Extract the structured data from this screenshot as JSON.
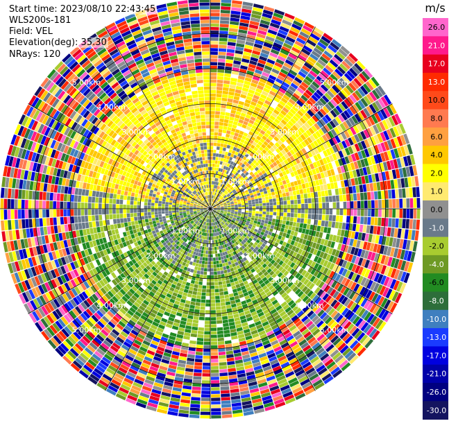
{
  "header": {
    "start_time": "Start time: 2023/08/10 22:43:45",
    "instrument": "WLS200s-181",
    "field": "Field: VEL",
    "elevation": "Elevation(deg): 35.30",
    "nrays": "NRays: 120"
  },
  "chart_data": {
    "type": "ppi",
    "field": "VEL",
    "nrays": 120,
    "max_range_km": 6.0,
    "range_rings_km": [
      1,
      2,
      3,
      4,
      5
    ],
    "ring_labels": [
      "1.00km",
      "2.00km",
      "3.00km",
      "4.00km",
      "5.00km"
    ],
    "colorbar": {
      "unit": "m/s",
      "ticks": [
        "26.0",
        "21.0",
        "17.0",
        "13.0",
        "10.0",
        "8.0",
        "6.0",
        "4.0",
        "2.0",
        "1.0",
        "0.0",
        "-1.0",
        "-2.0",
        "-4.0",
        "-6.0",
        "-8.0",
        "-10.0",
        "-13.0",
        "-17.0",
        "-21.0",
        "-26.0",
        "-30.0"
      ],
      "colors": [
        "#ff66cc",
        "#ff1a8c",
        "#e8001e",
        "#ff2a00",
        "#ff4a1a",
        "#ff7a50",
        "#ffa040",
        "#ffc800",
        "#ffff00",
        "#ffea70",
        "#909090",
        "#6a7a8a",
        "#a8cc30",
        "#6e9a24",
        "#228b22",
        "#2d6e3a",
        "#3f7fbf",
        "#1a3bff",
        "#0000e0",
        "#0000aa",
        "#000080",
        "#141460"
      ]
    }
  }
}
